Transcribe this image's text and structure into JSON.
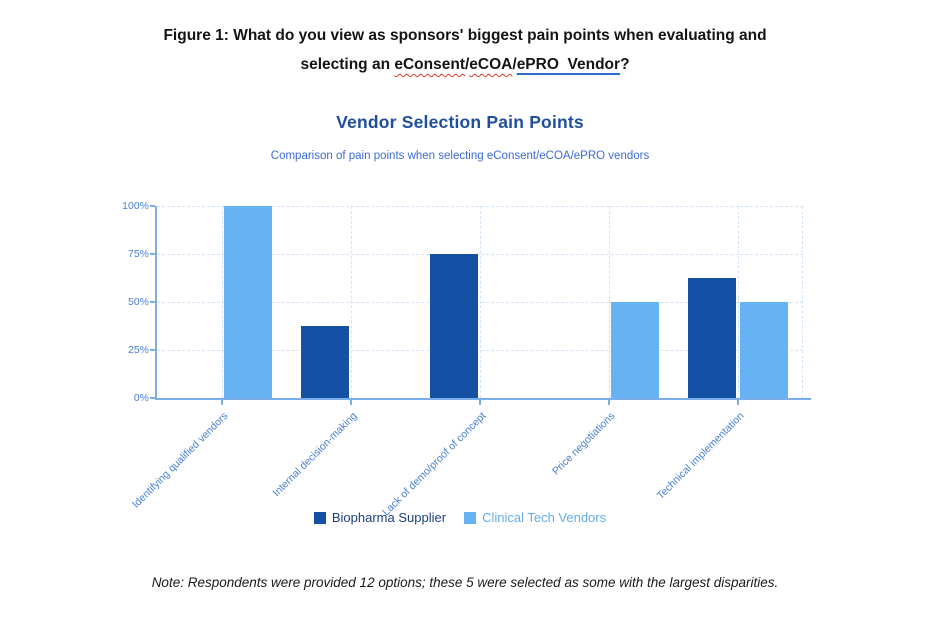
{
  "figure_caption": {
    "line1": "Figure 1: What do you view as sponsors' biggest pain points when evaluating and",
    "line2_prefix": "selecting an ",
    "spell_word1": "eConsent",
    "slash1": "/",
    "spell_word2": "eCOA",
    "slash2": "/",
    "link_text": "ePRO  Vendor",
    "suffix": "?"
  },
  "chart_data": {
    "type": "bar",
    "title": "Vendor Selection Pain Points",
    "subtitle": "Comparison of pain points when selecting eConsent/eCOA/ePRO vendors",
    "categories": [
      "Identifying qualified vendors",
      "Internal decision-making",
      "Lack of demo/proof of concept",
      "Price negotiations",
      "Technical implementation"
    ],
    "series": [
      {
        "name": "Biopharma Supplier",
        "color": "#1450A4",
        "label_color": "#1C3E80",
        "values": [
          0,
          37.5,
          75,
          0,
          62.5
        ]
      },
      {
        "name": "Clinical Tech Vendors",
        "color": "#66B2F2",
        "label_color": "#63ACEC",
        "values": [
          100,
          0,
          0,
          50,
          50
        ]
      }
    ],
    "y_ticks": [
      "0%",
      "25%",
      "50%",
      "75%",
      "100%"
    ],
    "ylim": [
      0,
      100
    ],
    "xlabel": "",
    "ylabel": "",
    "grid": true,
    "legend_position": "bottom"
  },
  "footnote": {
    "text": "Note: Respondents were provided 12 options; these 5 were selected as some with the largest disparities."
  },
  "colors": {
    "chart_title": "#1E4E9E",
    "chart_subtitle": "#3B6BD6",
    "axis_line": "#79AEE8",
    "axis_text": "#4A80D4",
    "gridline": "#D3E3F8",
    "spellcheck_underline": "#E03C31",
    "hyperlink_underline": "#2F6BCE"
  }
}
